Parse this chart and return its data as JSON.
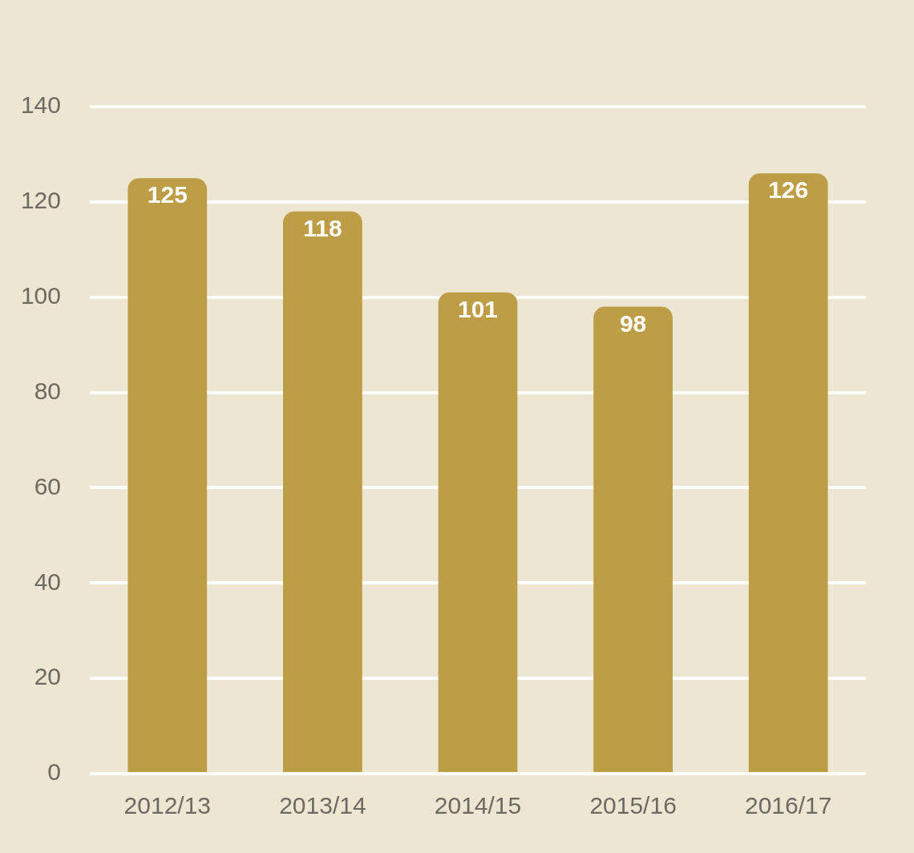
{
  "chart_data": {
    "type": "bar",
    "categories": [
      "2012/13",
      "2013/14",
      "2014/15",
      "2015/16",
      "2016/17"
    ],
    "values": [
      125,
      118,
      101,
      98,
      126
    ],
    "color": "#bd9d45",
    "ylim": [
      0,
      140
    ],
    "yticks": [
      0,
      20,
      40,
      60,
      80,
      100,
      120,
      140
    ],
    "grid": "y",
    "legend": false,
    "data_labels": true
  }
}
